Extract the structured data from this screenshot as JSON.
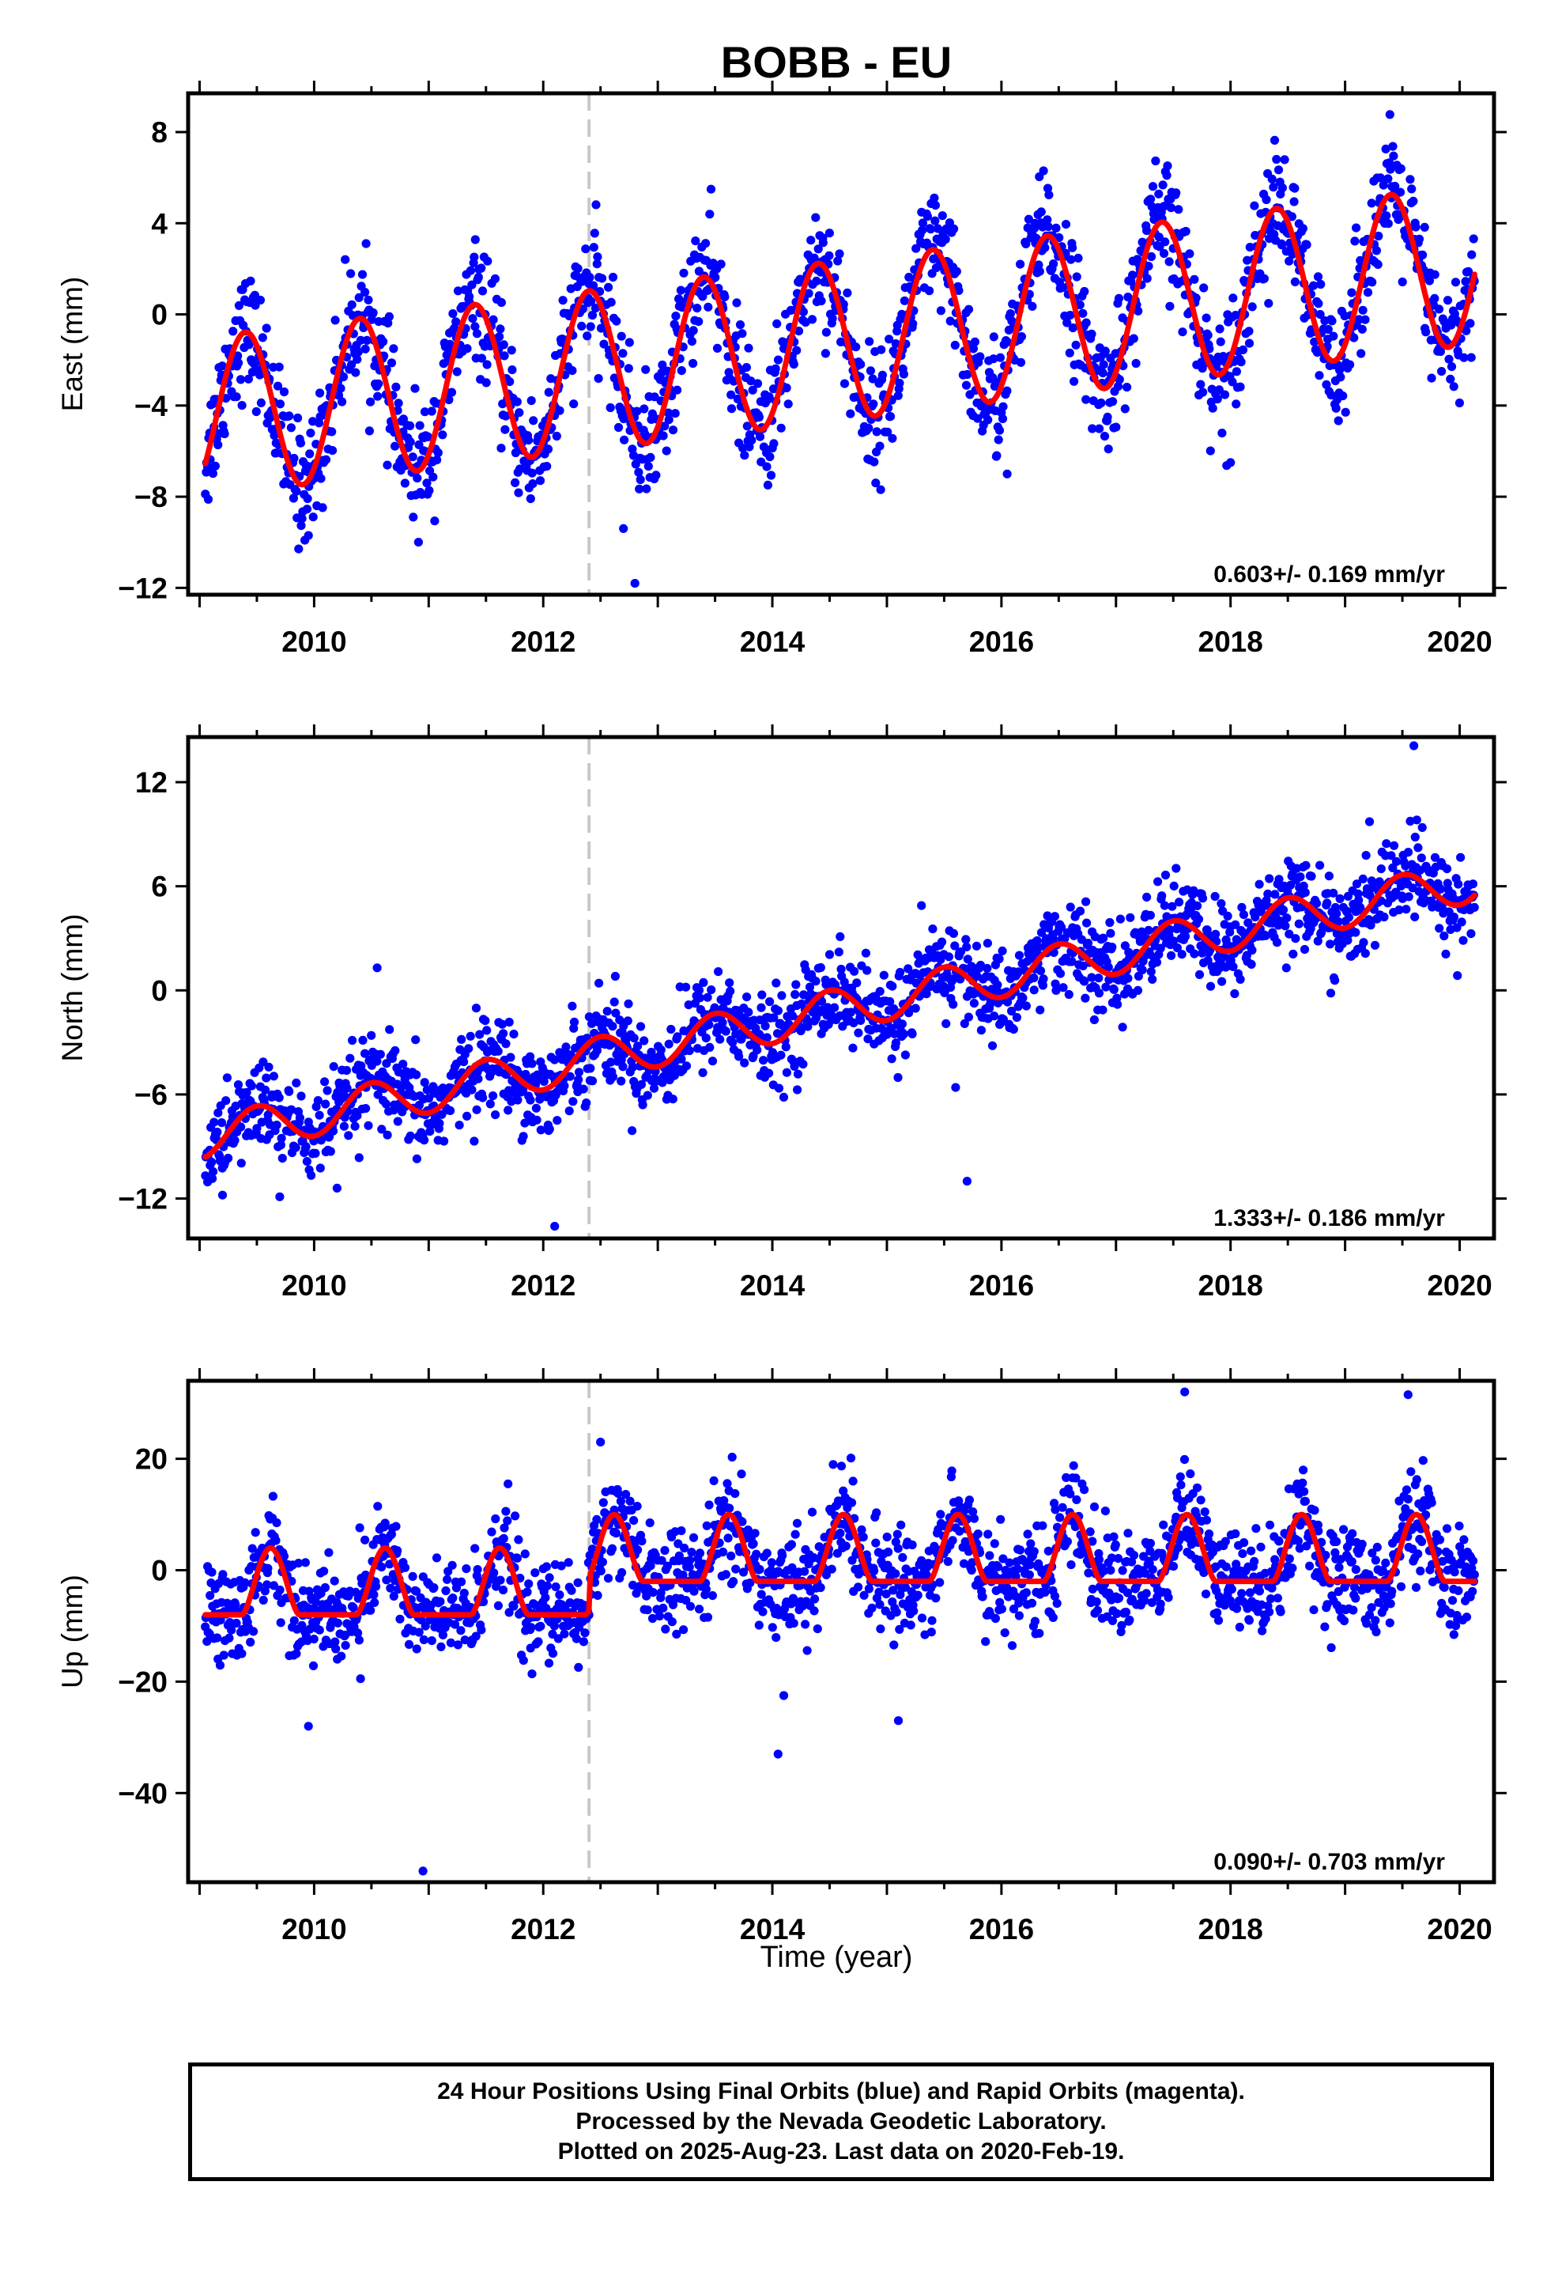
{
  "figure": {
    "title": "BOBB - EU",
    "xlabel": "Time (year)"
  },
  "colors": {
    "data_points": "#0000ff",
    "model_curve": "#ff0000",
    "event_line": "#c8c8c8",
    "axis": "#000000"
  },
  "chart_data": [
    {
      "type": "scatter",
      "component": "east",
      "ylabel": "East (mm)",
      "xlim": [
        2008.9,
        2020.3
      ],
      "ylim": [
        -12.3,
        9.7
      ],
      "yticks": [
        -12,
        -8,
        -4,
        0,
        4,
        8
      ],
      "ytick_labels": [
        "−12",
        "−8",
        "−4",
        "0",
        "4",
        "8"
      ],
      "xticks": [
        2010,
        2012,
        2014,
        2016,
        2018,
        2020
      ],
      "xtick_labels": [
        "2010",
        "2012",
        "2014",
        "2016",
        "2018",
        "2020"
      ],
      "event_line_x": 2012.4,
      "rate_label": "0.603+/- 0.169 mm/yr",
      "model": {
        "name": "",
        "offset": -1.2,
        "rate": 0.603,
        "amplitude": 3.5,
        "peak_year_fraction": 0.4,
        "pattern": "sinusoid"
      },
      "series": [
        {
          "name": "",
          "x_range": [
            2009.05,
            2020.13
          ],
          "marker": "dot",
          "scatter_sd_mm": 1.3
        }
      ],
      "outliers": [
        [
          2009.95,
          -9.7
        ],
        [
          2012.7,
          -9.4
        ],
        [
          2012.8,
          -11.8
        ],
        [
          2016.05,
          -7.0
        ],
        [
          2018.0,
          -6.5
        ]
      ]
    },
    {
      "type": "scatter",
      "component": "north",
      "ylabel": "North (mm)",
      "xlim": [
        2008.9,
        2020.3
      ],
      "ylim": [
        -14.3,
        14.6
      ],
      "yticks": [
        -12,
        -6,
        0,
        6,
        12
      ],
      "ytick_labels": [
        "−12",
        "−6",
        "0",
        "6",
        "12"
      ],
      "xticks": [
        2010,
        2012,
        2014,
        2016,
        2018,
        2020
      ],
      "xtick_labels": [
        "2010",
        "2012",
        "2014",
        "2016",
        "2018",
        "2020"
      ],
      "event_line_x": 2012.4,
      "rate_label": "1.333+/- 0.186 mm/yr",
      "model": {
        "name": "",
        "offset": -1.2,
        "rate": 1.333,
        "amplitude": 1.2,
        "peak_year_fraction": 0.5,
        "pattern": "sinusoid"
      },
      "series": [
        {
          "name": "",
          "x_range": [
            2009.05,
            2020.13
          ],
          "marker": "dot",
          "scatter_sd_mm": 1.3
        }
      ],
      "outliers": [
        [
          2009.2,
          -11.8
        ],
        [
          2009.7,
          -11.9
        ],
        [
          2010.2,
          -11.4
        ],
        [
          2012.1,
          -13.6
        ],
        [
          2015.7,
          -11.0
        ],
        [
          2015.6,
          -5.6
        ],
        [
          2019.6,
          14.1
        ],
        [
          2010.55,
          1.3
        ]
      ]
    },
    {
      "type": "scatter",
      "component": "up",
      "ylabel": "Up (mm)",
      "xlim": [
        2008.9,
        2020.3
      ],
      "ylim": [
        -56,
        34
      ],
      "yticks": [
        -40,
        -20,
        0,
        20
      ],
      "ytick_labels": [
        "−40",
        "−20",
        "0",
        "20"
      ],
      "xticks": [
        2010,
        2012,
        2014,
        2016,
        2018,
        2020
      ],
      "xtick_labels": [
        "2010",
        "2012",
        "2014",
        "2016",
        "2018",
        "2020"
      ],
      "event_line_x": 2012.4,
      "rate_label": "0.090+/- 0.703 mm/yr",
      "model": {
        "name": "",
        "before_event": {
          "min": -8,
          "max": 4
        },
        "after_event": {
          "min": -2,
          "max": 10
        },
        "peak_year_fraction": 0.62,
        "pattern": "flat-bottom seasonal"
      },
      "series": [
        {
          "name": "",
          "x_range": [
            2009.05,
            2020.13
          ],
          "marker": "dot",
          "scatter_sd_mm": 4.5
        }
      ],
      "outliers": [
        [
          2010.95,
          -54
        ],
        [
          2009.95,
          -28
        ],
        [
          2014.05,
          -33
        ],
        [
          2015.1,
          -27
        ],
        [
          2014.1,
          -22.5
        ],
        [
          2017.6,
          32
        ],
        [
          2019.55,
          31.5
        ],
        [
          2012.5,
          23
        ]
      ]
    }
  ],
  "footer": {
    "lines": [
      "24 Hour Positions Using Final Orbits (blue) and Rapid Orbits (magenta).",
      "Processed by the Nevada Geodetic Laboratory.",
      "Plotted on 2025-Aug-23. Last data on 2020-Feb-19."
    ]
  }
}
